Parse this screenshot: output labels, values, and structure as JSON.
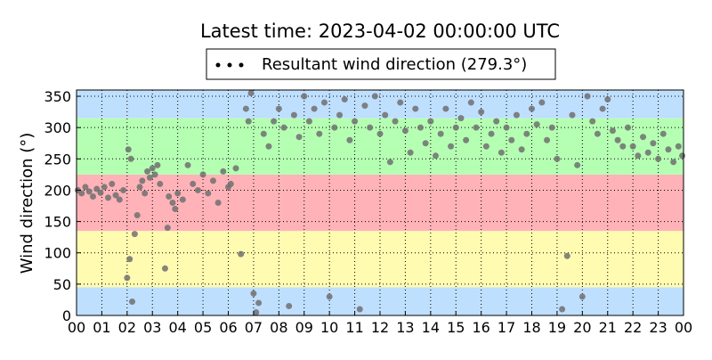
{
  "chart_data": {
    "type": "scatter",
    "title": "Latest time: 2023-04-02 00:00:00 UTC",
    "ylabel": "Wind direction (°)",
    "xlim": [
      0,
      24
    ],
    "ylim": [
      0,
      360
    ],
    "xticks": [
      {
        "value": 0,
        "label": "00"
      },
      {
        "value": 1,
        "label": "01"
      },
      {
        "value": 2,
        "label": "02"
      },
      {
        "value": 3,
        "label": "03"
      },
      {
        "value": 4,
        "label": "04"
      },
      {
        "value": 5,
        "label": "05"
      },
      {
        "value": 6,
        "label": "06"
      },
      {
        "value": 7,
        "label": "07"
      },
      {
        "value": 8,
        "label": "08"
      },
      {
        "value": 9,
        "label": "09"
      },
      {
        "value": 10,
        "label": "10"
      },
      {
        "value": 11,
        "label": "11"
      },
      {
        "value": 12,
        "label": "12"
      },
      {
        "value": 13,
        "label": "13"
      },
      {
        "value": 14,
        "label": "14"
      },
      {
        "value": 15,
        "label": "15"
      },
      {
        "value": 16,
        "label": "16"
      },
      {
        "value": 17,
        "label": "17"
      },
      {
        "value": 18,
        "label": "18"
      },
      {
        "value": 19,
        "label": "19"
      },
      {
        "value": 20,
        "label": "20"
      },
      {
        "value": 21,
        "label": "21"
      },
      {
        "value": 22,
        "label": "22"
      },
      {
        "value": 23,
        "label": "23"
      },
      {
        "value": 24,
        "label": "00"
      }
    ],
    "yticks": [
      0,
      50,
      100,
      150,
      200,
      250,
      300,
      350
    ],
    "grid": true,
    "bands": [
      {
        "from": 0,
        "to": 45,
        "color": "#bfdfff"
      },
      {
        "from": 45,
        "to": 135,
        "color": "#fffbb0"
      },
      {
        "from": 135,
        "to": 225,
        "color": "#ffb3b8"
      },
      {
        "from": 225,
        "to": 315,
        "color": "#b5ffb3"
      },
      {
        "from": 315,
        "to": 360,
        "color": "#bfdfff"
      }
    ],
    "series": [
      {
        "name": "Resultant wind direction (279.3°)",
        "color": "#707070",
        "x": [
          0.05,
          0.2,
          0.35,
          0.5,
          0.65,
          0.8,
          0.95,
          1.1,
          1.25,
          1.4,
          1.55,
          1.7,
          1.85,
          2.0,
          2.05,
          2.1,
          2.15,
          2.2,
          2.3,
          2.4,
          2.5,
          2.6,
          2.7,
          2.8,
          2.9,
          3.0,
          3.1,
          3.2,
          3.3,
          3.5,
          3.6,
          3.65,
          3.8,
          3.9,
          4.0,
          4.2,
          4.4,
          4.6,
          4.8,
          5.0,
          5.2,
          5.4,
          5.6,
          5.8,
          6.0,
          6.1,
          6.3,
          6.5,
          6.7,
          6.8,
          6.9,
          7.0,
          7.1,
          7.2,
          7.4,
          7.6,
          7.8,
          8.0,
          8.2,
          8.4,
          8.6,
          8.8,
          9.0,
          9.2,
          9.4,
          9.6,
          9.8,
          10.0,
          10.2,
          10.4,
          10.6,
          10.8,
          11.0,
          11.2,
          11.4,
          11.6,
          11.8,
          12.0,
          12.2,
          12.4,
          12.6,
          12.8,
          13.0,
          13.2,
          13.4,
          13.6,
          13.8,
          14.0,
          14.2,
          14.4,
          14.6,
          14.8,
          15.0,
          15.2,
          15.4,
          15.6,
          15.8,
          16.0,
          16.2,
          16.4,
          16.6,
          16.8,
          17.0,
          17.2,
          17.4,
          17.6,
          17.8,
          18.0,
          18.2,
          18.4,
          18.6,
          18.8,
          19.0,
          19.2,
          19.4,
          19.6,
          19.8,
          20.0,
          20.2,
          20.4,
          20.6,
          20.8,
          21.0,
          21.2,
          21.4,
          21.6,
          21.8,
          22.0,
          22.2,
          22.4,
          22.6,
          22.8,
          23.0,
          23.2,
          23.4,
          23.6,
          23.8,
          23.95
        ],
        "values": [
          200,
          195,
          205,
          198,
          190,
          202,
          196,
          205,
          188,
          210,
          192,
          185,
          200,
          60,
          265,
          90,
          250,
          22,
          130,
          160,
          205,
          215,
          195,
          230,
          220,
          235,
          225,
          240,
          210,
          75,
          140,
          190,
          180,
          170,
          195,
          185,
          240,
          210,
          200,
          225,
          195,
          215,
          180,
          230,
          205,
          210,
          235,
          98,
          330,
          310,
          355,
          35,
          5,
          20,
          290,
          270,
          310,
          330,
          300,
          15,
          320,
          285,
          350,
          310,
          330,
          290,
          340,
          30,
          300,
          320,
          345,
          280,
          310,
          10,
          335,
          300,
          350,
          290,
          320,
          245,
          310,
          340,
          295,
          260,
          330,
          300,
          275,
          310,
          255,
          290,
          330,
          270,
          300,
          315,
          280,
          340,
          300,
          325,
          270,
          290,
          310,
          260,
          300,
          280,
          320,
          265,
          290,
          330,
          305,
          340,
          280,
          300,
          250,
          10,
          95,
          320,
          240,
          30,
          350,
          310,
          290,
          330,
          345,
          295,
          280,
          270,
          300,
          270,
          255,
          285,
          260,
          275,
          250,
          290,
          265,
          245,
          270,
          255
        ]
      }
    ]
  }
}
